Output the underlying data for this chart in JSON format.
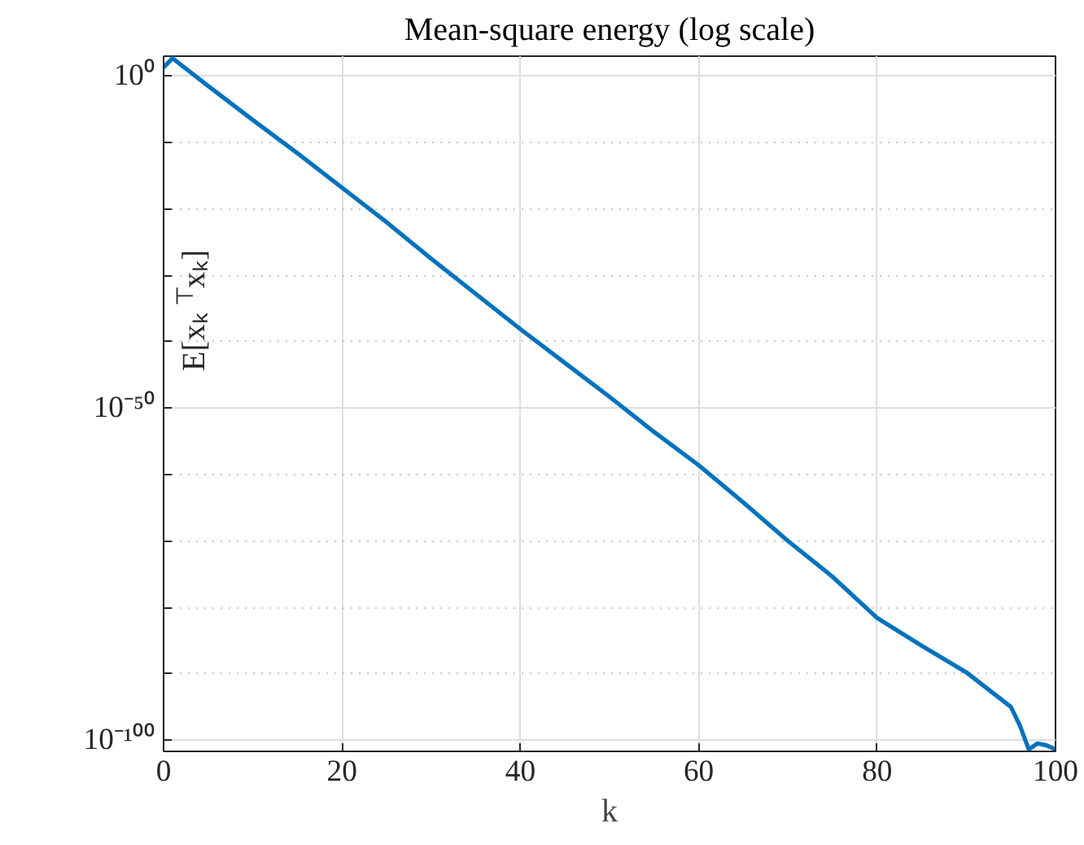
{
  "chart_data": {
    "type": "line",
    "title": "Mean-square energy (log scale)",
    "xlabel": "k",
    "ylabel": "E[xₖ$^{⊤}$xₖ]",
    "log": "y",
    "grid": true,
    "marker": "none",
    "line_style": "solid",
    "xlim": [
      0,
      100
    ],
    "xticks": [
      0,
      20,
      40,
      60,
      80,
      100
    ],
    "ylim": [
      2e-102,
      1000.0
    ],
    "yticks": [
      {
        "value": 1,
        "label": "10⁰"
      },
      {
        "value": 1e-10,
        "label": null
      },
      {
        "value": 1e-20,
        "label": null
      },
      {
        "value": 1e-30,
        "label": null
      },
      {
        "value": 1e-40,
        "label": null
      },
      {
        "value": 1e-50,
        "label": "10⁻⁵⁰"
      },
      {
        "value": 1e-60,
        "label": null
      },
      {
        "value": 1e-70,
        "label": null
      },
      {
        "value": 1e-80,
        "label": null
      },
      {
        "value": 1e-90,
        "label": null
      },
      {
        "value": 1e-100,
        "label": "10⁻¹⁰⁰"
      }
    ],
    "x": [
      0,
      1,
      5,
      10,
      15,
      20,
      25,
      30,
      35,
      40,
      45,
      50,
      55,
      60,
      65,
      70,
      75,
      80,
      85,
      90,
      95,
      96,
      97,
      98,
      99,
      100
    ],
    "series": [
      {
        "color": "#0072bd",
        "values": [
          20,
          500,
          0.032,
          2.5e-07,
          2.5e-12,
          1.6e-17,
          1e-22,
          3.2e-28,
          1.6e-33,
          7.9e-39,
          6.3e-44,
          5e-49,
          2.5e-54,
          2.5e-59,
          6.3e-65,
          1e-70,
          4e-76,
          2.5e-82,
          1.6e-86,
          1.6e-90,
          1e-95,
          1.6e-98,
          4e-102,
          3.2e-101,
          1.6e-101,
          4e-102
        ]
      }
    ]
  }
}
